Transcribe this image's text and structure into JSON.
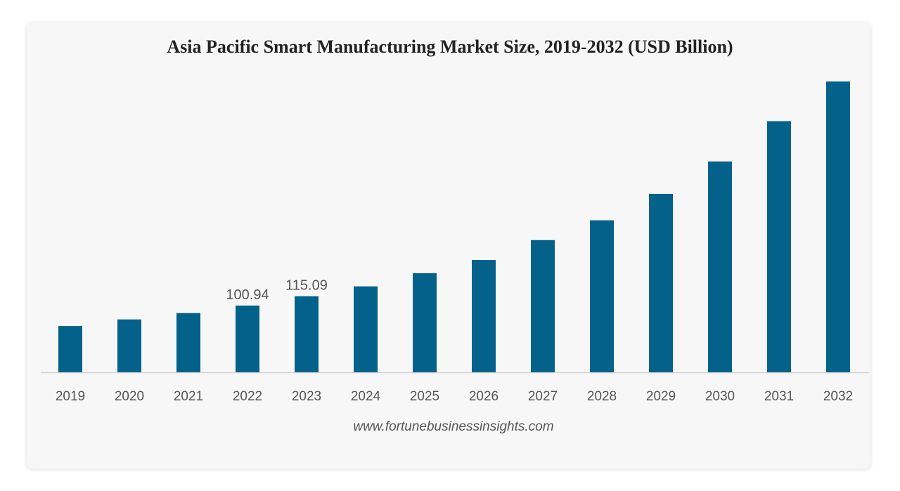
{
  "chart_data": {
    "type": "bar",
    "title": "Asia Pacific Smart Manufacturing Market Size, 2019-2032 (USD Billion)",
    "categories": [
      "2019",
      "2020",
      "2021",
      "2022",
      "2023",
      "2024",
      "2025",
      "2026",
      "2027",
      "2028",
      "2029",
      "2030",
      "2031",
      "2032"
    ],
    "values": [
      70,
      80,
      89.6,
      100.94,
      115.09,
      130,
      150,
      170,
      200,
      230,
      270,
      319,
      380,
      440
    ],
    "data_labels": {
      "2022": "100.94",
      "2023": "115.09"
    },
    "xlabel": "",
    "ylabel": "",
    "ylim": [
      0,
      440
    ],
    "grid": false,
    "bar_color": "#04628a",
    "source": "www.fortunebusinessinsights.com"
  }
}
